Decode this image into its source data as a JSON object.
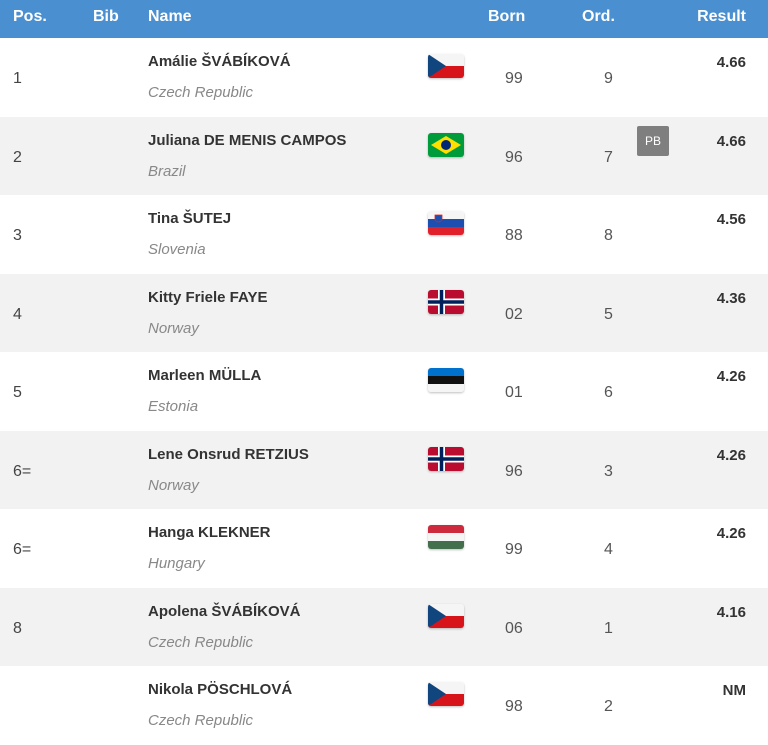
{
  "header": {
    "pos": "Pos.",
    "bib": "Bib",
    "name": "Name",
    "born": "Born",
    "ord": "Ord.",
    "result": "Result"
  },
  "rows": [
    {
      "pos": "1",
      "name": "Amálie ŠVÁBÍKOVÁ",
      "country": "Czech Republic",
      "flag": "czech-flag-icon",
      "born": "99",
      "ord": "9",
      "result": "4.66",
      "badge": ""
    },
    {
      "pos": "2",
      "name": "Juliana DE MENIS CAMPOS",
      "country": "Brazil",
      "flag": "brazil-flag-icon",
      "born": "96",
      "ord": "7",
      "result": "4.66",
      "badge": "PB"
    },
    {
      "pos": "3",
      "name": "Tina ŠUTEJ",
      "country": "Slovenia",
      "flag": "slovenia-flag-icon",
      "born": "88",
      "ord": "8",
      "result": "4.56",
      "badge": ""
    },
    {
      "pos": "4",
      "name": "Kitty Friele FAYE",
      "country": "Norway",
      "flag": "norway-flag-icon",
      "born": "02",
      "ord": "5",
      "result": "4.36",
      "badge": ""
    },
    {
      "pos": "5",
      "name": "Marleen MÜLLA",
      "country": "Estonia",
      "flag": "estonia-flag-icon",
      "born": "01",
      "ord": "6",
      "result": "4.26",
      "badge": ""
    },
    {
      "pos": "6=",
      "name": "Lene Onsrud RETZIUS",
      "country": "Norway",
      "flag": "norway-flag-icon",
      "born": "96",
      "ord": "3",
      "result": "4.26",
      "badge": ""
    },
    {
      "pos": "6=",
      "name": "Hanga KLEKNER",
      "country": "Hungary",
      "flag": "hungary-flag-icon",
      "born": "99",
      "ord": "4",
      "result": "4.26",
      "badge": ""
    },
    {
      "pos": "8",
      "name": "Apolena ŠVÁBÍKOVÁ",
      "country": "Czech Republic",
      "flag": "czech-flag-icon",
      "born": "06",
      "ord": "1",
      "result": "4.16",
      "badge": ""
    },
    {
      "pos": "",
      "name": "Nikola PÖSCHLOVÁ",
      "country": "Czech Republic",
      "flag": "czech-flag-icon",
      "born": "98",
      "ord": "2",
      "result": "NM",
      "badge": ""
    }
  ]
}
